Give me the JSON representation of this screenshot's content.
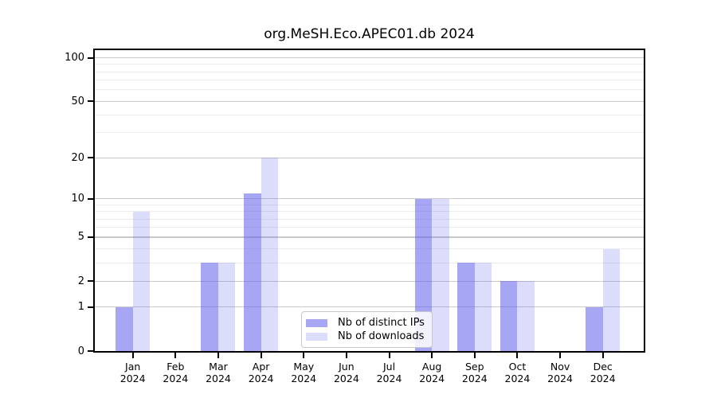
{
  "title": "org.MeSH.Eco.APEC01.db 2024",
  "chart_data": {
    "type": "bar",
    "title": "org.MeSH.Eco.APEC01.db 2024",
    "categories": [
      "Jan",
      "Feb",
      "Mar",
      "Apr",
      "May",
      "Jun",
      "Jul",
      "Aug",
      "Sep",
      "Oct",
      "Nov",
      "Dec"
    ],
    "category_second_line": "2024",
    "series": [
      {
        "name": "Nb of distinct IPs",
        "color": "rgba(92,92,237,0.55)",
        "values": [
          1,
          0,
          3,
          11,
          0,
          0,
          0,
          10,
          3,
          2,
          0,
          1
        ]
      },
      {
        "name": "Nb of downloads",
        "color": "rgba(92,92,237,0.21)",
        "values": [
          8,
          0,
          3,
          20,
          0,
          0,
          0,
          10,
          3,
          2,
          0,
          4
        ]
      }
    ],
    "xlabel": "",
    "ylabel": "",
    "y_scale": "log10(1+v)",
    "y_major_ticks": [
      0,
      1,
      2,
      5,
      10,
      20,
      50,
      100
    ],
    "y_minor_gridlines": [
      3,
      4,
      6,
      7,
      8,
      9,
      30,
      40,
      60,
      70,
      80,
      90
    ],
    "ylim": [
      0,
      113
    ],
    "grid": "horizontal, major and minor",
    "legend_position": "inside bottom-center"
  },
  "colors": {
    "axis": "#000000",
    "major_grid": "#c9c9c9",
    "minor_grid": "#ececec",
    "legend_border": "#c8c8c8",
    "background": "#ffffff"
  }
}
